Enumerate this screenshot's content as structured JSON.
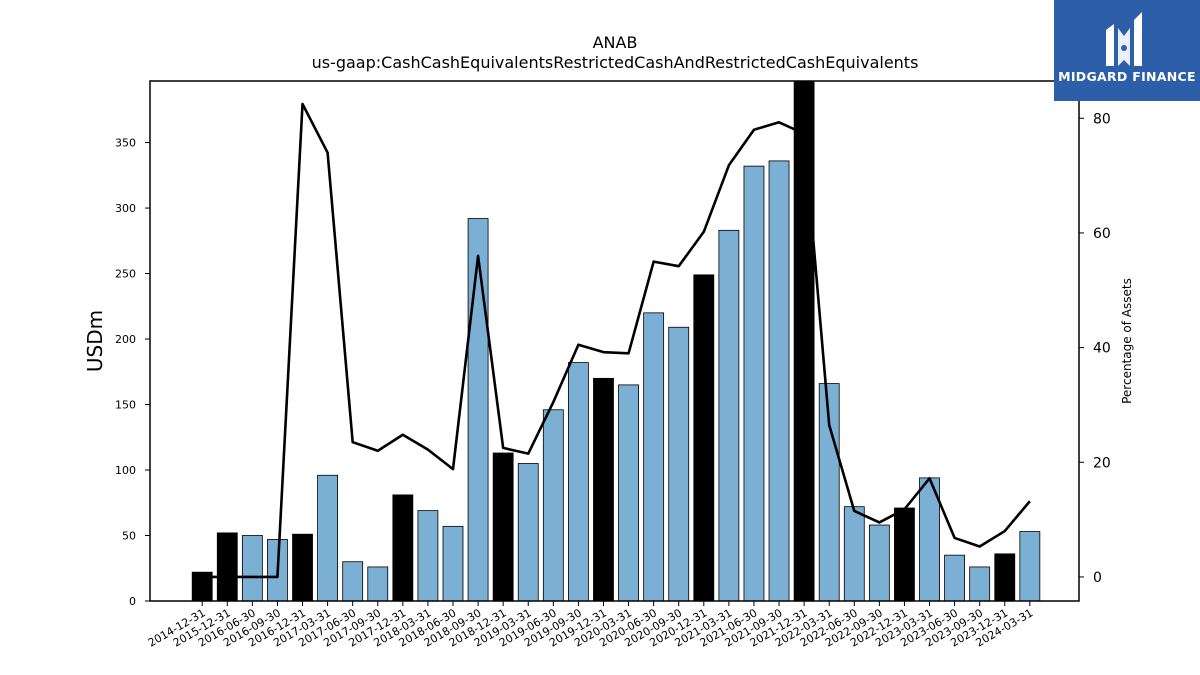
{
  "brand": {
    "name": "MIDGARD FINANCE",
    "bg_color": "#2d5ea8"
  },
  "chart_data": {
    "type": "bar",
    "title": "ANAB",
    "subtitle": "us-gaap:CashCashEquivalentsRestrictedCashAndRestrictedCashEquivalents",
    "ylabel": "USDm",
    "y2label": "Percentage of Assets",
    "ylim": [
      0,
      397
    ],
    "y2lim": [
      -4.2,
      86.5
    ],
    "yticks": [
      0,
      50,
      100,
      150,
      200,
      250,
      300,
      350
    ],
    "y2ticks": [
      0,
      20,
      40,
      60,
      80
    ],
    "grid": false,
    "colors": {
      "quarterly": "#7bafd4",
      "annual": "#000000",
      "line": "#000000"
    },
    "categories": [
      "2014-12-31",
      "2015-12-31",
      "2016-06-30",
      "2016-09-30",
      "2016-12-31",
      "2017-03-31",
      "2017-06-30",
      "2017-09-30",
      "2017-12-31",
      "2018-03-31",
      "2018-06-30",
      "2018-09-30",
      "2018-12-31",
      "2019-03-31",
      "2019-06-30",
      "2019-09-30",
      "2019-12-31",
      "2020-03-31",
      "2020-06-30",
      "2020-09-30",
      "2020-12-31",
      "2021-03-31",
      "2021-06-30",
      "2021-09-30",
      "2021-12-31",
      "2022-03-31",
      "2022-06-30",
      "2022-09-30",
      "2022-12-31",
      "2023-03-31",
      "2023-06-30",
      "2023-09-30",
      "2023-12-31",
      "2024-03-31"
    ],
    "series": [
      {
        "kind": "bar",
        "values": [
          22,
          52,
          50,
          47,
          51,
          96,
          30,
          26,
          81,
          69,
          57,
          292,
          113,
          105,
          146,
          182,
          170,
          165,
          220,
          209,
          249,
          283,
          332,
          336,
          397,
          166,
          72,
          58,
          71,
          94,
          35,
          26,
          36,
          53
        ],
        "annual": [
          true,
          true,
          false,
          false,
          true,
          false,
          false,
          false,
          true,
          false,
          false,
          false,
          true,
          false,
          false,
          false,
          true,
          false,
          false,
          false,
          true,
          false,
          false,
          false,
          true,
          false,
          false,
          false,
          true,
          false,
          false,
          false,
          true,
          false
        ]
      },
      {
        "kind": "line",
        "axis": "right",
        "values": [
          0,
          0,
          0,
          0,
          82.5,
          74,
          23.5,
          22,
          24.8,
          22.2,
          18.8,
          56,
          22.5,
          21.5,
          30.5,
          40.5,
          39.2,
          39,
          55,
          54.2,
          60.2,
          71.8,
          78,
          79.3,
          77.3,
          26.5,
          11.5,
          9.5,
          11.8,
          17.2,
          6.8,
          5.3,
          8,
          13.2
        ]
      }
    ]
  }
}
